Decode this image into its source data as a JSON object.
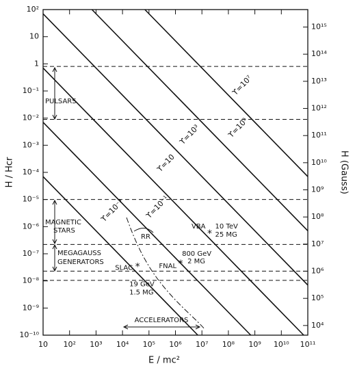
{
  "chart_data": {
    "type": "line",
    "x_label": "E / mc²",
    "y_label": "H / Hcr",
    "y2_label": "H (Gauss)",
    "log_x": true,
    "log_y": true,
    "xlim": [
      10,
      100000000000.0
    ],
    "ylim": [
      1e-10,
      100
    ],
    "y2lim": [
      4400,
      4400000000000000.0
    ],
    "xticks": [
      {
        "value": 10,
        "label": "10"
      },
      {
        "value": 100,
        "label": "10²"
      },
      {
        "value": 1000,
        "label": "10³"
      },
      {
        "value": 10000,
        "label": "10⁴"
      },
      {
        "value": 100000,
        "label": "10⁵"
      },
      {
        "value": 1000000,
        "label": "10⁶"
      },
      {
        "value": 10000000,
        "label": "10⁷"
      },
      {
        "value": 100000000,
        "label": "10⁸"
      },
      {
        "value": 1000000000,
        "label": "10⁹"
      },
      {
        "value": 10000000000,
        "label": "10¹⁰"
      },
      {
        "value": 100000000000,
        "label": "10¹¹"
      }
    ],
    "yticks": [
      {
        "value": 1e-10,
        "label": "10⁻¹⁰"
      },
      {
        "value": 1e-09,
        "label": "10⁻⁹"
      },
      {
        "value": 1e-08,
        "label": "10⁻⁸"
      },
      {
        "value": 1e-07,
        "label": "10⁻⁷"
      },
      {
        "value": 1e-06,
        "label": "10⁻⁶"
      },
      {
        "value": 1e-05,
        "label": "10⁻⁵"
      },
      {
        "value": 0.0001,
        "label": "10⁻⁴"
      },
      {
        "value": 0.001,
        "label": "10⁻³"
      },
      {
        "value": 0.01,
        "label": "10⁻²"
      },
      {
        "value": 0.1,
        "label": "10⁻¹"
      },
      1,
      10,
      {
        "value": 100,
        "label": "10²"
      }
    ],
    "y2ticks": [
      {
        "value": 10000,
        "label": "10⁴"
      },
      {
        "value": 100000,
        "label": "10⁵"
      },
      {
        "value": 1000000,
        "label": "10⁶"
      },
      {
        "value": 10000000,
        "label": "10⁷"
      },
      {
        "value": 100000000,
        "label": "10⁸"
      },
      {
        "value": 1000000000,
        "label": "10⁹"
      },
      {
        "value": 10000000000,
        "label": "10¹⁰"
      },
      {
        "value": 100000000000,
        "label": "10¹¹"
      },
      {
        "value": 1000000000000,
        "label": "10¹²"
      },
      {
        "value": 10000000000000,
        "label": "10¹³"
      },
      {
        "value": 100000000000000,
        "label": "10¹⁴"
      },
      {
        "value": 1000000000000000,
        "label": "10¹⁵"
      }
    ],
    "series": [
      {
        "name": "ϒ=10⁻³",
        "color": "#111111",
        "x": [
          10,
          7000000
        ],
        "values": [
          7e-05,
          1e-10
        ]
      },
      {
        "name": "ϒ=10⁻¹",
        "color": "#111111",
        "x": [
          10,
          700000000
        ],
        "values": [
          0.007,
          1e-10
        ]
      },
      {
        "name": "ϒ=10",
        "color": "#111111",
        "x": [
          10,
          70000000000
        ],
        "values": [
          0.7,
          1e-10
        ]
      },
      {
        "name": "ϒ=10³",
        "color": "#111111",
        "x": [
          10,
          100000000000
        ],
        "values": [
          70,
          7e-09
        ]
      },
      {
        "name": "ϒ=10⁵",
        "color": "#111111",
        "x": [
          700,
          100000000000
        ],
        "values": [
          100,
          7e-07
        ]
      },
      {
        "name": "ϒ=10⁷",
        "color": "#111111",
        "x": [
          70000,
          100000000000
        ],
        "values": [
          100,
          7e-05
        ]
      }
    ],
    "reference_lines": [
      0.8,
      0.009,
      1e-05,
      2.2e-07,
      2.3e-08,
      1.05e-08
    ],
    "points": [
      {
        "name": "SLAC",
        "x": 37000,
        "y": 3.4e-08,
        "energy": "19 GeV",
        "field": "1.5 MG"
      },
      {
        "name": "FNAL",
        "x": 1570000,
        "y": 4.5e-08,
        "energy": "800 GeV",
        "field": "2 MG"
      },
      {
        "name": "VBA",
        "x": 19600000,
        "y": 5.7e-07,
        "energy": "10 TeV",
        "field": "25 MG"
      }
    ],
    "annotations": {
      "pulsars": "PULSARS",
      "magnetic_stars": [
        "MAGNETIC",
        "STARS"
      ],
      "megagauss": [
        "MEGAGAUSS",
        "GENERATORS"
      ],
      "rr": "RR",
      "accelerators": "ACCELERATORS"
    }
  }
}
